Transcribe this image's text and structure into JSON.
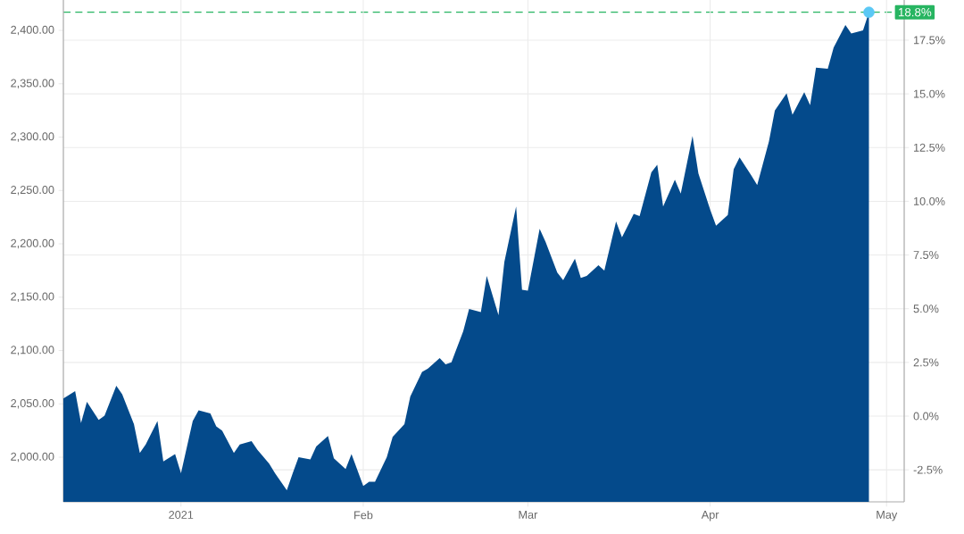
{
  "chart_data": {
    "type": "area",
    "x": [
      "2020-12-12",
      "2020-12-14",
      "2020-12-15",
      "2020-12-16",
      "2020-12-18",
      "2020-12-19",
      "2020-12-21",
      "2020-12-22",
      "2020-12-24",
      "2020-12-25",
      "2020-12-26",
      "2020-12-28",
      "2020-12-29",
      "2020-12-31",
      "2021-01-01",
      "2021-01-03",
      "2021-01-04",
      "2021-01-06",
      "2021-01-07",
      "2021-01-08",
      "2021-01-10",
      "2021-01-11",
      "2021-01-13",
      "2021-01-14",
      "2021-01-16",
      "2021-01-17",
      "2021-01-19",
      "2021-01-20",
      "2021-01-21",
      "2021-01-23",
      "2021-01-24",
      "2021-01-26",
      "2021-01-27",
      "2021-01-29",
      "2021-01-30",
      "2021-02-01",
      "2021-02-02",
      "2021-02-03",
      "2021-02-05",
      "2021-02-06",
      "2021-02-08",
      "2021-02-09",
      "2021-02-11",
      "2021-02-12",
      "2021-02-14",
      "2021-02-15",
      "2021-02-16",
      "2021-02-18",
      "2021-02-19",
      "2021-02-21",
      "2021-02-22",
      "2021-02-24",
      "2021-02-25",
      "2021-02-27",
      "2021-02-28",
      "2021-03-01",
      "2021-03-03",
      "2021-03-04",
      "2021-03-06",
      "2021-03-07",
      "2021-03-09",
      "2021-03-10",
      "2021-03-11",
      "2021-03-13",
      "2021-03-14",
      "2021-03-16",
      "2021-03-17",
      "2021-03-19",
      "2021-03-20",
      "2021-03-22",
      "2021-03-23",
      "2021-03-24",
      "2021-03-26",
      "2021-03-27",
      "2021-03-29",
      "2021-03-30",
      "2021-04-01",
      "2021-04-02",
      "2021-04-04",
      "2021-04-05",
      "2021-04-06",
      "2021-04-08",
      "2021-04-09",
      "2021-04-11",
      "2021-04-12",
      "2021-04-14",
      "2021-04-15",
      "2021-04-17",
      "2021-04-18",
      "2021-04-19",
      "2021-04-21",
      "2021-04-22",
      "2021-04-24",
      "2021-04-25",
      "2021-04-27",
      "2021-04-28"
    ],
    "series": [
      {
        "color": "#044a8b",
        "values": [
          2055,
          2062,
          2032,
          2052,
          2035,
          2039,
          2067,
          2059,
          2031,
          2004,
          2012,
          2034,
          1996,
          2003,
          1985,
          2034,
          2044,
          2041,
          2029,
          2025,
          2004,
          2012,
          2015,
          2007,
          1994,
          1985,
          1969,
          1985,
          2000,
          1998,
          2010,
          2020,
          1999,
          1989,
          2003,
          1973,
          1977,
          1977,
          2000,
          2019,
          2031,
          2057,
          2080,
          2083,
          2093,
          2087,
          2089,
          2118,
          2139,
          2136,
          2170,
          2133,
          2183,
          2235,
          2157,
          2156,
          2214,
          2202,
          2173,
          2166,
          2186,
          2168,
          2170,
          2180,
          2175,
          2221,
          2206,
          2228,
          2226,
          2267,
          2274,
          2235,
          2260,
          2247,
          2301,
          2266,
          2232,
          2217,
          2227,
          2270,
          2281,
          2264,
          2255,
          2296,
          2325,
          2341,
          2321,
          2342,
          2330,
          2365,
          2364,
          2384,
          2405,
          2397,
          2400,
          2417
        ]
      },
      {
        "type": "scatter",
        "color": "#5bc8f5",
        "marker": "circle",
        "x": [
          "2021-04-28"
        ],
        "values": [
          2417
        ]
      }
    ],
    "xlim": [
      "2020-12-12",
      "2021-05-04"
    ],
    "xticks": [
      {
        "value": "2021-01-01",
        "label": "2021"
      },
      {
        "value": "2021-02-01",
        "label": "Feb"
      },
      {
        "value": "2021-03-01",
        "label": "Mar"
      },
      {
        "value": "2021-04-01",
        "label": "Apr"
      },
      {
        "value": "2021-05-01",
        "label": "May"
      }
    ],
    "ylim": [
      1958.2,
      2428.5
    ],
    "yticks": [
      {
        "value": 2000,
        "label": "2,000.00"
      },
      {
        "value": 2050,
        "label": "2,050.00"
      },
      {
        "value": 2100,
        "label": "2,100.00"
      },
      {
        "value": 2150,
        "label": "2,150.00"
      },
      {
        "value": 2200,
        "label": "2,200.00"
      },
      {
        "value": 2250,
        "label": "2,250.00"
      },
      {
        "value": 2300,
        "label": "2,300.00"
      },
      {
        "value": 2350,
        "label": "2,350.00"
      },
      {
        "value": 2400,
        "label": "2,400.00"
      }
    ],
    "y2lim": [
      -3.99,
      19.37
    ],
    "y2ticks": [
      {
        "value": -2.5,
        "label": "-2.5%"
      },
      {
        "value": 0,
        "label": "0.0%"
      },
      {
        "value": 2.5,
        "label": "2.5%"
      },
      {
        "value": 5,
        "label": "5.0%"
      },
      {
        "value": 7.5,
        "label": "7.5%"
      },
      {
        "value": 10,
        "label": "10.0%"
      },
      {
        "value": 12.5,
        "label": "12.5%"
      },
      {
        "value": 15,
        "label": "15.0%"
      },
      {
        "value": 17.5,
        "label": "17.5%"
      }
    ],
    "ref_lines": [
      {
        "axis": "y2",
        "value": 18.8,
        "label": "18.8%",
        "color": "#27b561",
        "line_style": "dashed"
      }
    ],
    "grid": true
  }
}
